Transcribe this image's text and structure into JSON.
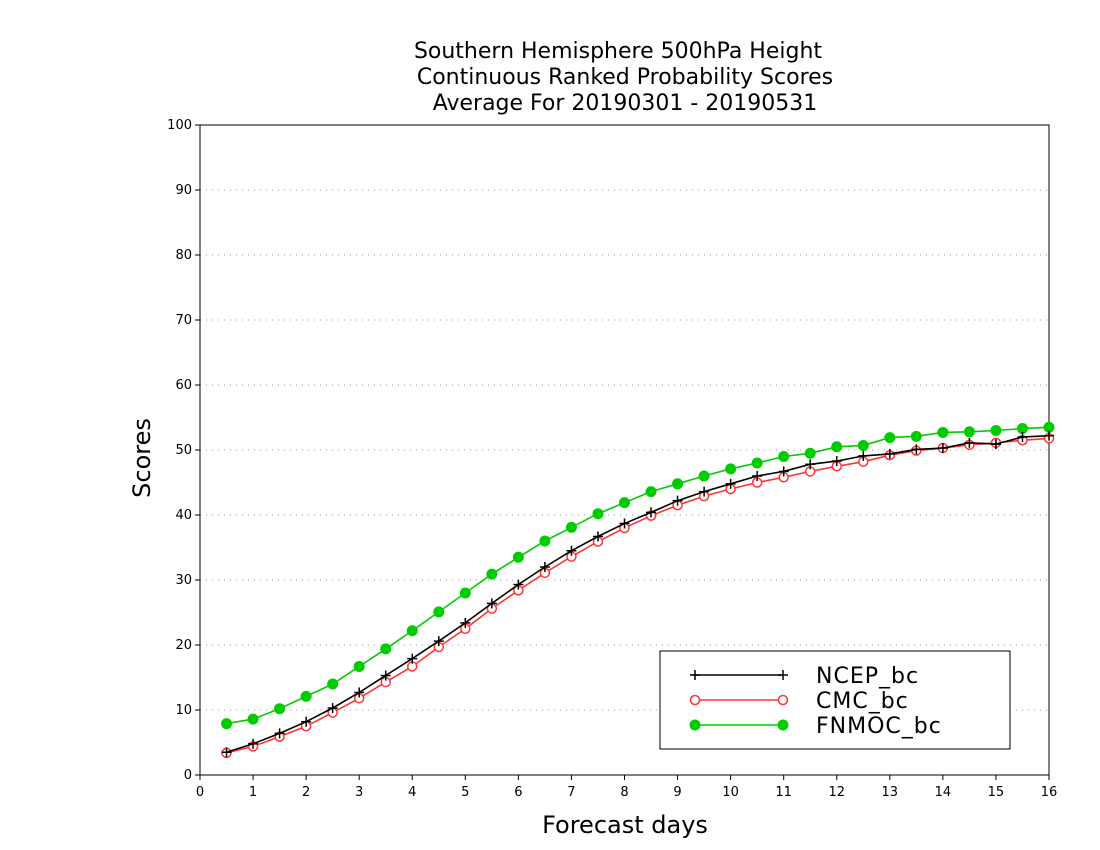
{
  "chart_data": {
    "type": "line",
    "title": [
      "Southern Hemisphere 500hPa Height",
      "Continuous Ranked Probability Scores",
      "Average For 20190301 - 20190531"
    ],
    "xlabel": "Forecast days",
    "ylabel": "Scores",
    "xlim": [
      0,
      16
    ],
    "ylim": [
      0,
      100
    ],
    "xticks": [
      0,
      1,
      2,
      3,
      4,
      5,
      6,
      7,
      8,
      9,
      10,
      11,
      12,
      13,
      14,
      15,
      16
    ],
    "xtick_labels": [
      "0",
      "1",
      "2",
      "3",
      "4",
      "5",
      "6",
      "7",
      "8",
      "9",
      "10",
      "11",
      "12",
      "13",
      "14",
      "15",
      "16"
    ],
    "yticks": [
      0,
      10,
      20,
      30,
      40,
      50,
      60,
      70,
      80,
      90,
      100
    ],
    "ytick_labels": [
      "0",
      "10",
      "20",
      "30",
      "40",
      "50",
      "60",
      "70",
      "80",
      "90",
      "100"
    ],
    "grid": "horizontal dotted",
    "legend_position": "bottom-right",
    "x": [
      0.5,
      1,
      1.5,
      2,
      2.5,
      3,
      3.5,
      4,
      4.5,
      5,
      5.5,
      6,
      6.5,
      7,
      7.5,
      8,
      8.5,
      9,
      9.5,
      10,
      10.5,
      11,
      11.5,
      12,
      12.5,
      13,
      13.5,
      14,
      14.5,
      15,
      15.5,
      16
    ],
    "series": [
      {
        "name": "NCEP_bc",
        "color": "#000000",
        "marker": "plus",
        "values": [
          3.5,
          4.8,
          6.4,
          8.2,
          10.3,
          12.7,
          15.3,
          17.9,
          20.6,
          23.4,
          26.4,
          29.3,
          32.0,
          34.5,
          36.7,
          38.7,
          40.4,
          42.2,
          43.6,
          44.8,
          46.0,
          46.7,
          47.8,
          48.3,
          49.1,
          49.4,
          50.1,
          50.3,
          51.1,
          50.9,
          52.0,
          52.2
        ]
      },
      {
        "name": "CMC_bc",
        "color": "#ff3333",
        "marker": "open-circle",
        "values": [
          3.4,
          4.4,
          5.9,
          7.5,
          9.6,
          11.8,
          14.3,
          16.7,
          19.7,
          22.5,
          25.6,
          28.4,
          31.1,
          33.6,
          35.9,
          38.0,
          39.9,
          41.5,
          42.9,
          44.0,
          45.0,
          45.8,
          46.7,
          47.5,
          48.2,
          49.2,
          49.9,
          50.3,
          50.8,
          51.1,
          51.5,
          51.8
        ]
      },
      {
        "name": "FNMOC_bc",
        "color": "#00cc00",
        "marker": "filled-circle",
        "values": [
          7.9,
          8.6,
          10.2,
          12.1,
          14.0,
          16.7,
          19.4,
          22.2,
          25.1,
          28.0,
          30.9,
          33.5,
          36.0,
          38.1,
          40.2,
          41.9,
          43.6,
          44.8,
          46.0,
          47.1,
          48.0,
          49.0,
          49.5,
          50.5,
          50.7,
          51.9,
          52.1,
          52.7,
          52.8,
          53.0,
          53.3,
          53.5
        ]
      }
    ]
  }
}
